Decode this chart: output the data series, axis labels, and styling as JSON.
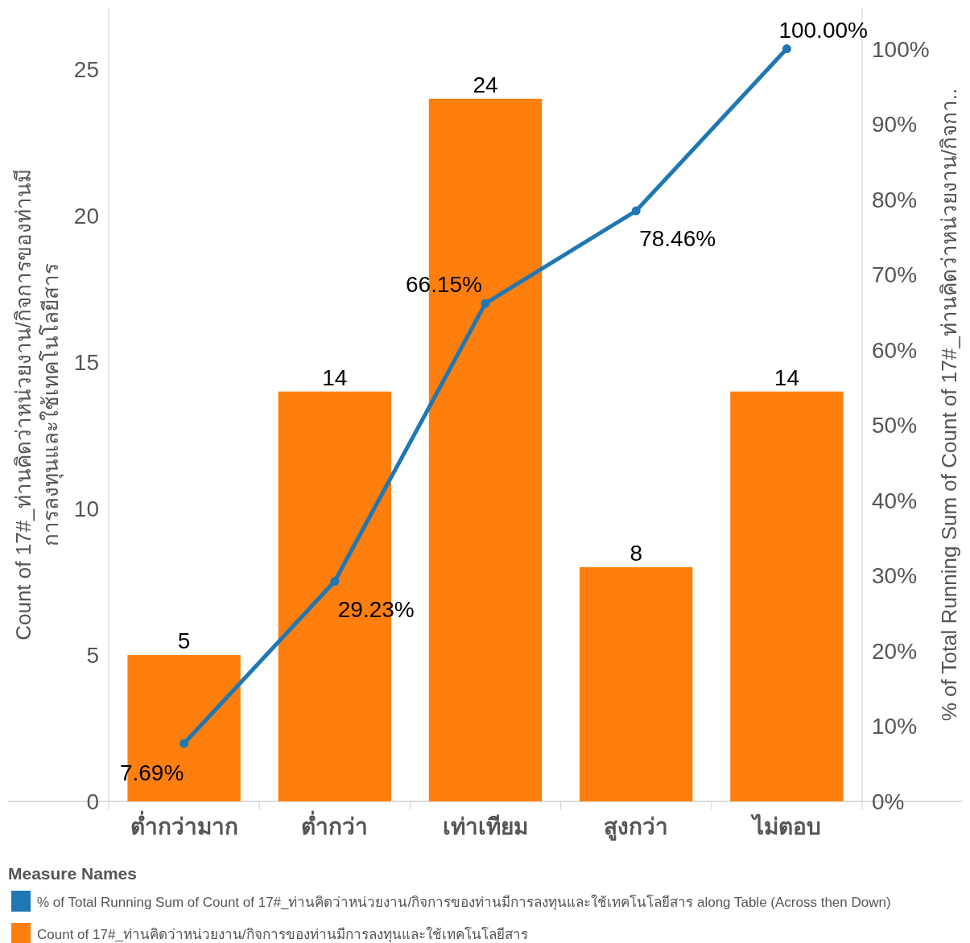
{
  "chart_data": {
    "type": "bar",
    "categories": [
      "ต่ำกว่ามาก",
      "ต่ำกว่า",
      "เท่าเทียม",
      "สูงกว่า",
      "ไม่ตอบ"
    ],
    "series": [
      {
        "name": "% of Total Running Sum of Count of 17#_ท่านคิดว่าหน่วยงาน/กิจการของท่านมีการลงทุนและใช้เทคโนโลยีสาร along Table (Across then Down)",
        "type": "line",
        "axis": "y2",
        "color": "#1f77b4",
        "marker": "circle",
        "values": [
          7.69,
          29.23,
          66.15,
          78.46,
          100.0
        ],
        "value_labels": [
          "7.69%",
          "29.23%",
          "66.15%",
          "78.46%",
          "100.00%"
        ]
      },
      {
        "name": "Count of 17#_ท่านคิดว่าหน่วยงาน/กิจการของท่านมีการลงทุนและใช้เทคโนโลยีสาร",
        "color": "#ff7f0e",
        "values": [
          5,
          14,
          24,
          8,
          14
        ],
        "value_labels": [
          "5",
          "14",
          "24",
          "8",
          "14"
        ]
      }
    ],
    "ylabel": "Count of 17#_ท่านคิดว่าหน่วยงาน/กิจการของท่านมีการลงทุนและใช้เทคโนโลยีสาร",
    "y2label": "% of Total Running Sum of Count of 17#_ท่านคิดว่าหน่วยงาน/กิจกา..",
    "ylim": [
      0,
      27.1
    ],
    "yticks": [
      0,
      5,
      10,
      15,
      20,
      25
    ],
    "y2lim": [
      0,
      105.4
    ],
    "y2ticks": [
      {
        "value": 0,
        "label": "0%"
      },
      {
        "value": 10,
        "label": "10%"
      },
      {
        "value": 20,
        "label": "20%"
      },
      {
        "value": 30,
        "label": "30%"
      },
      {
        "value": 40,
        "label": "40%"
      },
      {
        "value": 50,
        "label": "50%"
      },
      {
        "value": 60,
        "label": "60%"
      },
      {
        "value": 70,
        "label": "70%"
      },
      {
        "value": 80,
        "label": "80%"
      },
      {
        "value": 90,
        "label": "90%"
      },
      {
        "value": 100,
        "label": "100%"
      }
    ],
    "legend": "bottom",
    "legend_title": "Measure Names"
  }
}
